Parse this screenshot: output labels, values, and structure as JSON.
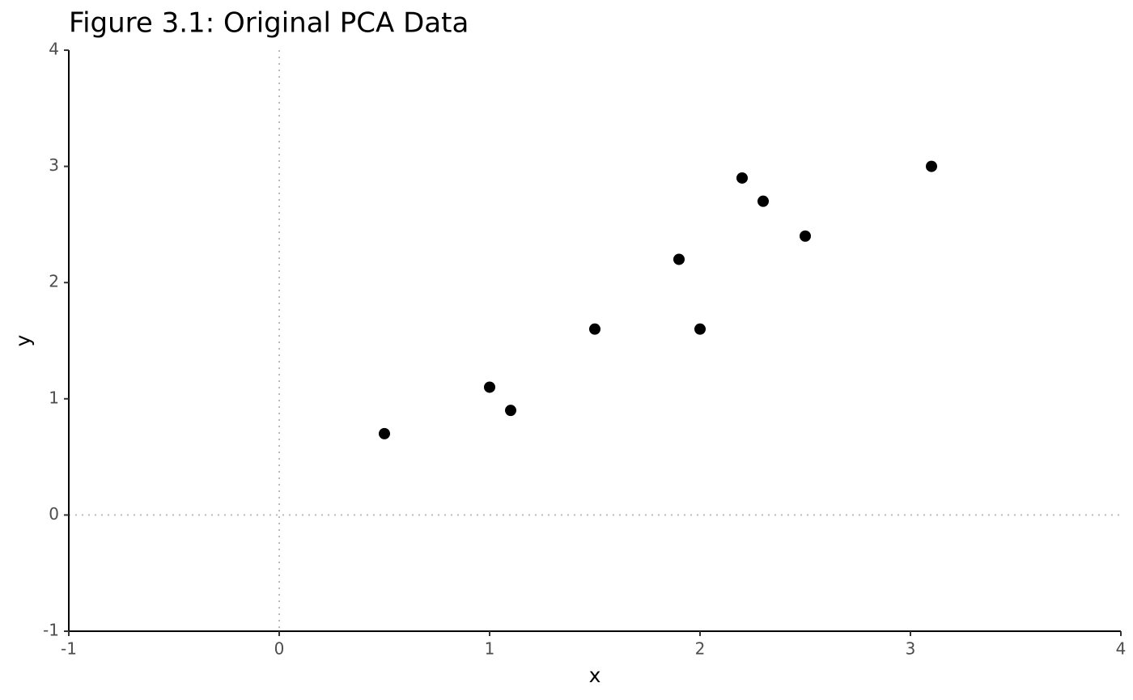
{
  "chart_data": {
    "type": "scatter",
    "title": "Figure 3.1: Original PCA Data",
    "x_label": "x",
    "y_label": "y",
    "x": [
      0.5,
      1.0,
      1.1,
      1.5,
      1.9,
      2.0,
      2.2,
      2.3,
      2.5,
      3.1
    ],
    "values": [
      0.7,
      1.1,
      0.9,
      1.6,
      2.2,
      1.6,
      2.9,
      2.7,
      2.4,
      3.0
    ],
    "color": "#000000",
    "xlim": [
      -1,
      4
    ],
    "xticks": [
      -1,
      0,
      1,
      2,
      3,
      4
    ],
    "ylim": [
      -1,
      4
    ],
    "yticks": [
      -1,
      0,
      1,
      2,
      3,
      4
    ],
    "hline": 0,
    "vline": 0
  }
}
